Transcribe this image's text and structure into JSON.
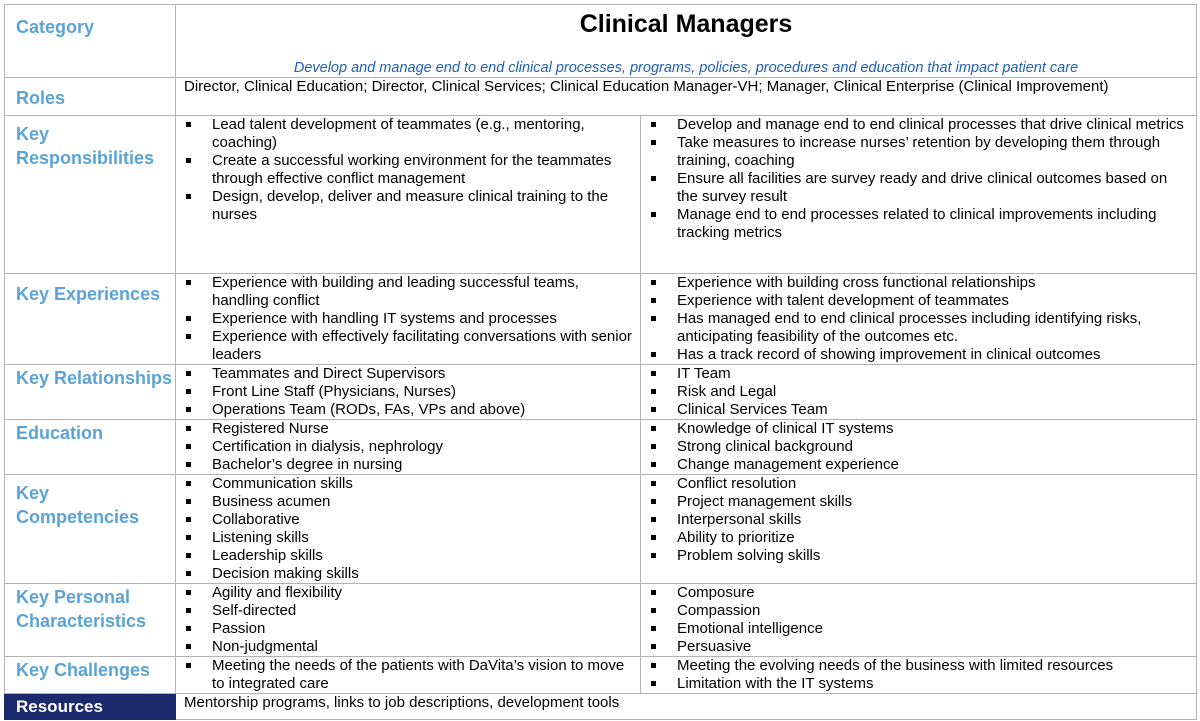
{
  "header": {
    "category_label": "Category",
    "title": "Clinical Managers",
    "subtitle": "Develop and manage end to end clinical processes, programs, policies, procedures and education that impact patient care"
  },
  "roles": {
    "label": "Roles",
    "text": "Director, Clinical Education; Director, Clinical Services; Clinical Education Manager-VH; Manager, Clinical Enterprise (Clinical Improvement)"
  },
  "rows": [
    {
      "label": "Key Responsibilities",
      "left": [
        "Lead talent development of teammates (e.g., mentoring, coaching)",
        "Create a successful working environment for the teammates through effective conflict management",
        "Design, develop, deliver and measure clinical training to the nurses"
      ],
      "right": [
        "Develop and manage end to end clinical processes that drive clinical metrics",
        "Take measures to increase nurses’ retention by developing them through training, coaching",
        "Ensure all facilities are survey ready and drive clinical outcomes based on the survey result",
        "Manage end to end processes related to clinical improvements including tracking metrics"
      ]
    },
    {
      "label": "Key Experiences",
      "left": [
        "Experience with building and leading successful teams, handling conflict",
        "Experience with handling IT systems and processes",
        "Experience with effectively facilitating conversations with senior leaders"
      ],
      "right": [
        "Experience with building cross functional relationships",
        "Experience with talent development of teammates",
        "Has managed end to end clinical processes including identifying risks, anticipating feasibility of the outcomes etc.",
        "Has a track record of showing improvement in clinical outcomes"
      ]
    },
    {
      "label": "Key Relationships",
      "left": [
        "Teammates and Direct Supervisors",
        "Front Line Staff (Physicians, Nurses)",
        "Operations Team (RODs, FAs, VPs and above)"
      ],
      "right": [
        "IT Team",
        "Risk and Legal",
        "Clinical Services Team"
      ]
    },
    {
      "label": "Education",
      "left": [
        "Registered Nurse",
        "Certification in dialysis, nephrology",
        "Bachelor’s degree in nursing"
      ],
      "right": [
        "Knowledge of clinical IT systems",
        "Strong clinical background",
        "Change management experience"
      ]
    },
    {
      "label": "Key Competencies",
      "left": [
        "Communication skills",
        "Business acumen",
        "Collaborative",
        "Listening skills",
        "Leadership skills",
        "Decision making skills"
      ],
      "right": [
        "Conflict resolution",
        "Project management skills",
        "Interpersonal skills",
        "Ability to prioritize",
        "Problem solving skills"
      ]
    },
    {
      "label": "Key Personal Characteristics",
      "left": [
        "Agility and flexibility",
        "Self-directed",
        "Passion",
        "Non-judgmental"
      ],
      "right": [
        "Composure",
        "Compassion",
        "Emotional intelligence",
        "Persuasive"
      ]
    },
    {
      "label": "Key Challenges",
      "left": [
        "Meeting the needs of the patients  with DaVita’s vision to move to integrated care"
      ],
      "right": [
        "Meeting the evolving needs of the business with limited resources",
        "Limitation with the IT systems"
      ]
    }
  ],
  "resources": {
    "label": "Resources",
    "text": "Mentorship programs, links to job descriptions, development tools"
  }
}
